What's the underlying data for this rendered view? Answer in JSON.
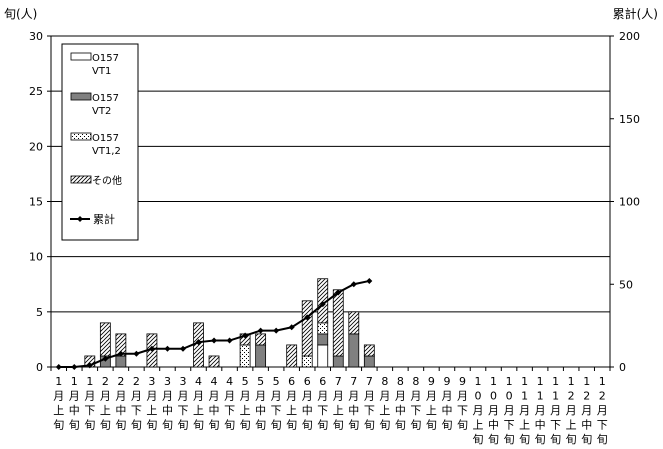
{
  "chart_data": {
    "type": "bar",
    "stacked": true,
    "left_axis_label": "旬(人)",
    "right_axis_label": "累計(人)",
    "y_left": {
      "min": 0,
      "max": 30,
      "ticks": [
        0,
        5,
        10,
        15,
        20,
        25,
        30
      ]
    },
    "y_right": {
      "min": 0,
      "max": 200,
      "ticks": [
        0,
        50,
        100,
        150,
        200
      ]
    },
    "gridlines": [
      5,
      10,
      15,
      20,
      25
    ],
    "legend_position": "top-left",
    "categories": [
      [
        "1",
        "月",
        "上",
        "旬"
      ],
      [
        "1",
        "月",
        "中",
        "旬"
      ],
      [
        "1",
        "月",
        "下",
        "旬"
      ],
      [
        "2",
        "月",
        "上",
        "旬"
      ],
      [
        "2",
        "月",
        "中",
        "旬"
      ],
      [
        "2",
        "月",
        "下",
        "旬"
      ],
      [
        "3",
        "月",
        "上",
        "旬"
      ],
      [
        "3",
        "月",
        "中",
        "旬"
      ],
      [
        "3",
        "月",
        "下",
        "旬"
      ],
      [
        "4",
        "月",
        "上",
        "旬"
      ],
      [
        "4",
        "月",
        "中",
        "旬"
      ],
      [
        "4",
        "月",
        "下",
        "旬"
      ],
      [
        "5",
        "月",
        "上",
        "旬"
      ],
      [
        "5",
        "月",
        "中",
        "旬"
      ],
      [
        "5",
        "月",
        "下",
        "旬"
      ],
      [
        "6",
        "月",
        "上",
        "旬"
      ],
      [
        "6",
        "月",
        "中",
        "旬"
      ],
      [
        "6",
        "月",
        "下",
        "旬"
      ],
      [
        "7",
        "月",
        "上",
        "旬"
      ],
      [
        "7",
        "月",
        "中",
        "旬"
      ],
      [
        "7",
        "月",
        "下",
        "旬"
      ],
      [
        "8",
        "月",
        "上",
        "旬"
      ],
      [
        "8",
        "月",
        "中",
        "旬"
      ],
      [
        "8",
        "月",
        "下",
        "旬"
      ],
      [
        "9",
        "月",
        "上",
        "旬"
      ],
      [
        "9",
        "月",
        "中",
        "旬"
      ],
      [
        "9",
        "月",
        "下",
        "旬"
      ],
      [
        "1",
        "0",
        "月",
        "上",
        "旬"
      ],
      [
        "1",
        "0",
        "月",
        "中",
        "旬"
      ],
      [
        "1",
        "0",
        "月",
        "下",
        "旬"
      ],
      [
        "1",
        "1",
        "月",
        "上",
        "旬"
      ],
      [
        "1",
        "1",
        "月",
        "中",
        "旬"
      ],
      [
        "1",
        "1",
        "月",
        "下",
        "旬"
      ],
      [
        "1",
        "2",
        "月",
        "上",
        "旬"
      ],
      [
        "1",
        "2",
        "月",
        "中",
        "旬"
      ],
      [
        "1",
        "2",
        "月",
        "下",
        "旬"
      ]
    ],
    "series": [
      {
        "name": "O157 VT1",
        "legend_lines": [
          "O157",
          "VT1"
        ],
        "pattern": "white",
        "values": [
          0,
          0,
          0,
          0,
          0,
          0,
          0,
          0,
          0,
          0,
          0,
          0,
          0,
          0,
          0,
          0,
          0,
          2,
          0,
          0,
          0,
          0,
          0,
          0,
          0,
          0,
          0,
          0,
          0,
          0,
          0,
          0,
          0,
          0,
          0,
          0
        ]
      },
      {
        "name": "O157 VT2",
        "legend_lines": [
          "O157",
          "VT2"
        ],
        "pattern": "gray",
        "values": [
          0,
          0,
          0,
          1,
          1,
          0,
          0,
          0,
          0,
          0,
          0,
          0,
          0,
          2,
          0,
          0,
          0,
          1,
          1,
          3,
          1,
          0,
          0,
          0,
          0,
          0,
          0,
          0,
          0,
          0,
          0,
          0,
          0,
          0,
          0,
          0
        ]
      },
      {
        "name": "O157 VT1,2",
        "legend_lines": [
          "O157",
          "VT1,2"
        ],
        "pattern": "dots",
        "values": [
          0,
          0,
          0,
          0,
          0,
          0,
          0,
          0,
          0,
          0,
          0,
          0,
          2,
          0,
          0,
          0,
          1,
          1,
          0,
          0,
          0,
          0,
          0,
          0,
          0,
          0,
          0,
          0,
          0,
          0,
          0,
          0,
          0,
          0,
          0,
          0
        ]
      },
      {
        "name": "その他",
        "legend_lines": [
          "その他"
        ],
        "pattern": "hatch",
        "values": [
          0,
          0,
          1,
          3,
          2,
          0,
          3,
          0,
          0,
          4,
          1,
          0,
          1,
          1,
          0,
          2,
          5,
          4,
          6,
          2,
          1,
          0,
          0,
          0,
          0,
          0,
          0,
          0,
          0,
          0,
          0,
          0,
          0,
          0,
          0,
          0
        ]
      }
    ],
    "cumulative": {
      "name": "累計",
      "axis": "right",
      "values": [
        0,
        0,
        1,
        5,
        8,
        8,
        11,
        11,
        11,
        15,
        16,
        16,
        19,
        22,
        22,
        24,
        30,
        38,
        45,
        50,
        52
      ]
    }
  }
}
